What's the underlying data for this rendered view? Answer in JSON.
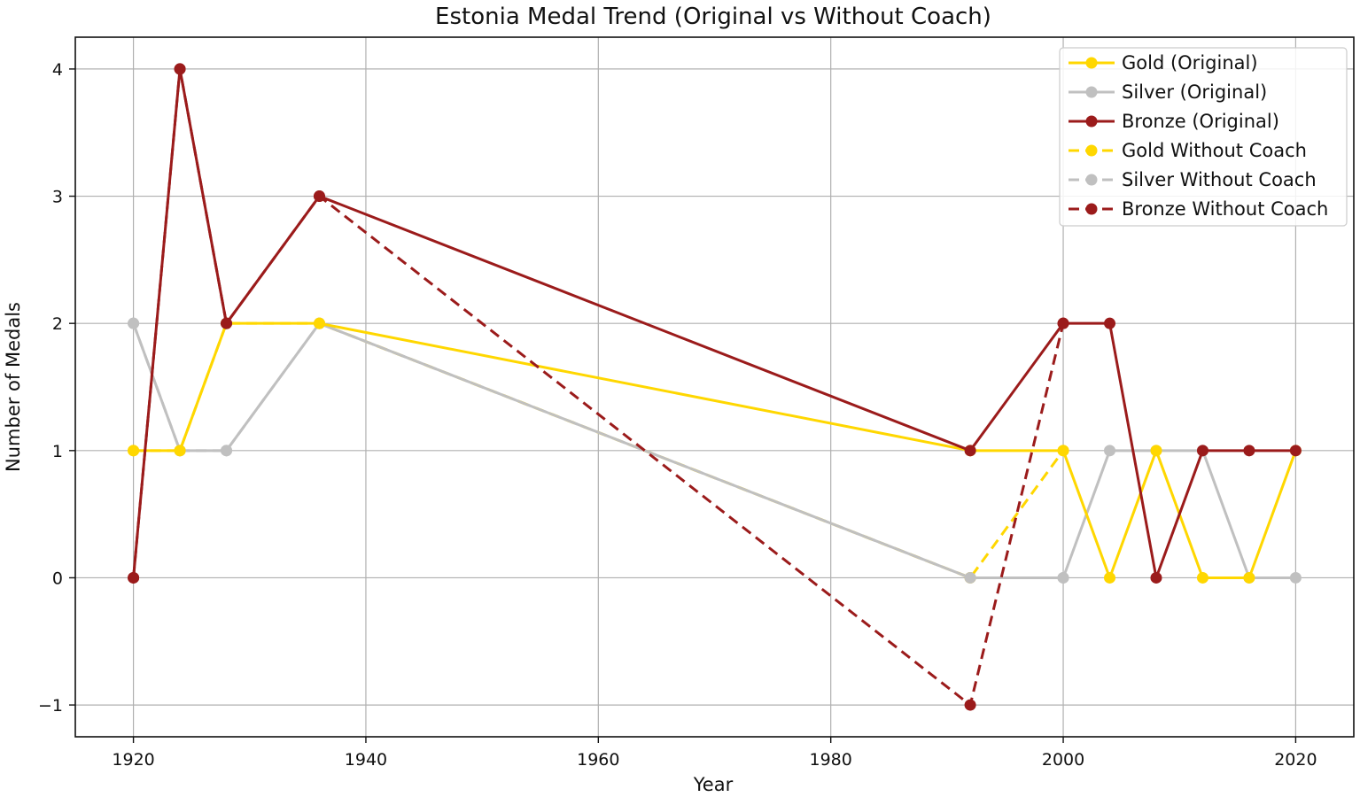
{
  "chart_data": {
    "type": "line",
    "title": "Estonia Medal Trend (Original vs  Without Coach)",
    "xlabel": "Year",
    "ylabel": "Number of Medals",
    "xlim": [
      1915,
      2025
    ],
    "ylim": [
      -1.25,
      4.25
    ],
    "xticks": [
      1920,
      1940,
      1960,
      1980,
      2000,
      2020
    ],
    "yticks": [
      -1,
      0,
      1,
      2,
      3,
      4
    ],
    "ytick_labels": [
      "−1",
      "0",
      "1",
      "2",
      "3",
      "4"
    ],
    "grid": true,
    "legend_position": "top-right",
    "series": [
      {
        "name": "Gold (Original)",
        "color": "#FFD700",
        "dashed": false,
        "x": [
          1920,
          1924,
          1928,
          1936,
          1992,
          2000,
          2004,
          2008,
          2012,
          2016,
          2020
        ],
        "y": [
          1,
          1,
          2,
          2,
          1,
          1,
          0,
          1,
          0,
          0,
          1
        ]
      },
      {
        "name": "Silver (Original)",
        "color": "#C0C0C0",
        "dashed": false,
        "x": [
          1920,
          1924,
          1928,
          1936,
          1992,
          2000,
          2004,
          2008,
          2012,
          2016,
          2020
        ],
        "y": [
          2,
          1,
          1,
          2,
          0,
          0,
          1,
          1,
          1,
          0,
          0
        ]
      },
      {
        "name": "Bronze (Original)",
        "color": "#9B1B1B",
        "dashed": false,
        "x": [
          1920,
          1924,
          1928,
          1936,
          1992,
          2000,
          2004,
          2008,
          2012,
          2016,
          2020
        ],
        "y": [
          0,
          4,
          2,
          3,
          1,
          2,
          2,
          0,
          1,
          1,
          1
        ]
      },
      {
        "name": "Gold Without Coach",
        "color": "#FFD700",
        "dashed": true,
        "x": [
          1920,
          1924,
          1928,
          1936,
          1992,
          2000
        ],
        "y": [
          1,
          1,
          2,
          2,
          0,
          1
        ]
      },
      {
        "name": "Silver Without Coach",
        "color": "#C0C0C0",
        "dashed": true,
        "x": [
          1920,
          1924,
          1928,
          1936,
          1992,
          2000
        ],
        "y": [
          2,
          1,
          1,
          2,
          0,
          0
        ]
      },
      {
        "name": "Bronze Without Coach",
        "color": "#9B1B1B",
        "dashed": true,
        "x": [
          1920,
          1924,
          1928,
          1936,
          1992,
          2000
        ],
        "y": [
          0,
          4,
          2,
          3,
          -1,
          2
        ]
      }
    ]
  }
}
